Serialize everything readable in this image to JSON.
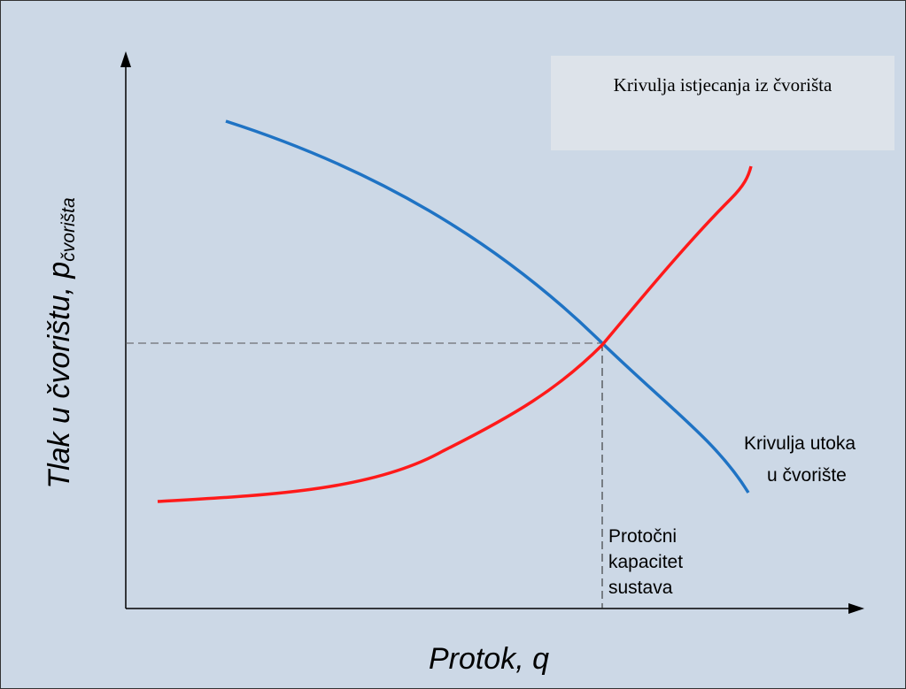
{
  "title_box": "Krivulja istjecanja iz čvorišta",
  "inflow_label": [
    "Krivulja utoka",
    "u čvorište"
  ],
  "capacity_label": [
    "Protočni",
    "kapacitet",
    "sustava"
  ],
  "y_axis": {
    "label": "Tlak u čvorištu, p",
    "subscript": "čvorišta"
  },
  "x_axis": {
    "label": "Protok, q"
  }
}
